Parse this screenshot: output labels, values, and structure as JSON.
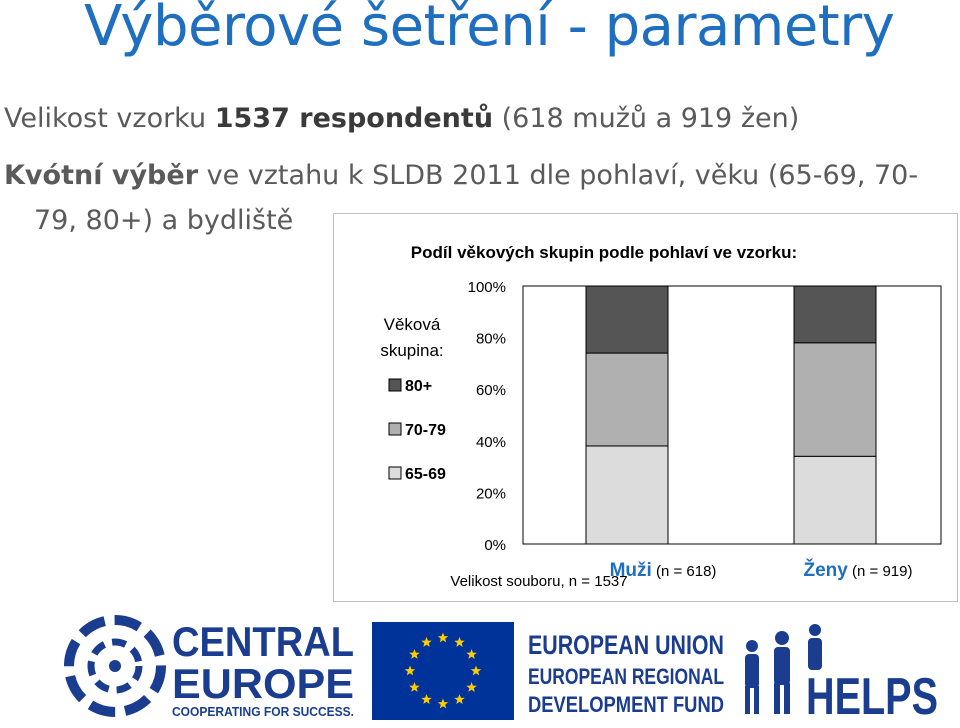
{
  "slide": {
    "title": "Výběrové šetření - parametry",
    "sample": {
      "prefix": "Velikost vzorku",
      "count": "1537 respondentů",
      "detail": "(618 mužů a 919 žen)"
    },
    "quota": {
      "bold": "Kvótní výběr",
      "text1": "ve vztahu k SLDB 2011 dle pohlaví, věku (65-69, 70-",
      "text2": "79, 80+) a bydliště"
    }
  },
  "chart_data": {
    "type": "bar",
    "stacked": true,
    "title": "Podíl věkových skupin podle pohlaví ve vzorku:",
    "legend_title": "Věková skupina:",
    "legend_position": "left",
    "xlabel": "Velikost souboru, n = 1537",
    "ylim": [
      0,
      100
    ],
    "yticks": [
      "0%",
      "20%",
      "40%",
      "60%",
      "80%",
      "100%"
    ],
    "categories": [
      {
        "name": "Muži",
        "note": "(n = 618)"
      },
      {
        "name": "Ženy",
        "note": "(n = 919)"
      }
    ],
    "series": [
      {
        "name": "65-69",
        "color": "#dcdcdc",
        "values": [
          38,
          34
        ]
      },
      {
        "name": "70-79",
        "color": "#b0b0b0",
        "values": [
          36,
          44
        ]
      },
      {
        "name": "80+",
        "color": "#555555",
        "values": [
          26,
          22
        ]
      }
    ],
    "grid": false
  },
  "logos": {
    "central": {
      "line1": "CENTRAL",
      "line2": "EUROPE",
      "tagline": "COOPERATING FOR SUCCESS."
    },
    "eu": {
      "line1": "EUROPEAN UNION",
      "line2": "EUROPEAN REGIONAL",
      "line3": "DEVELOPMENT FUND"
    },
    "helps": "HELPS"
  },
  "colors": {
    "title": "#1f6fc0",
    "category_label": "#1f6fc0",
    "logo": "#1a3d8f",
    "eu_flag": "#003399",
    "eu_star": "#ffcc00"
  }
}
